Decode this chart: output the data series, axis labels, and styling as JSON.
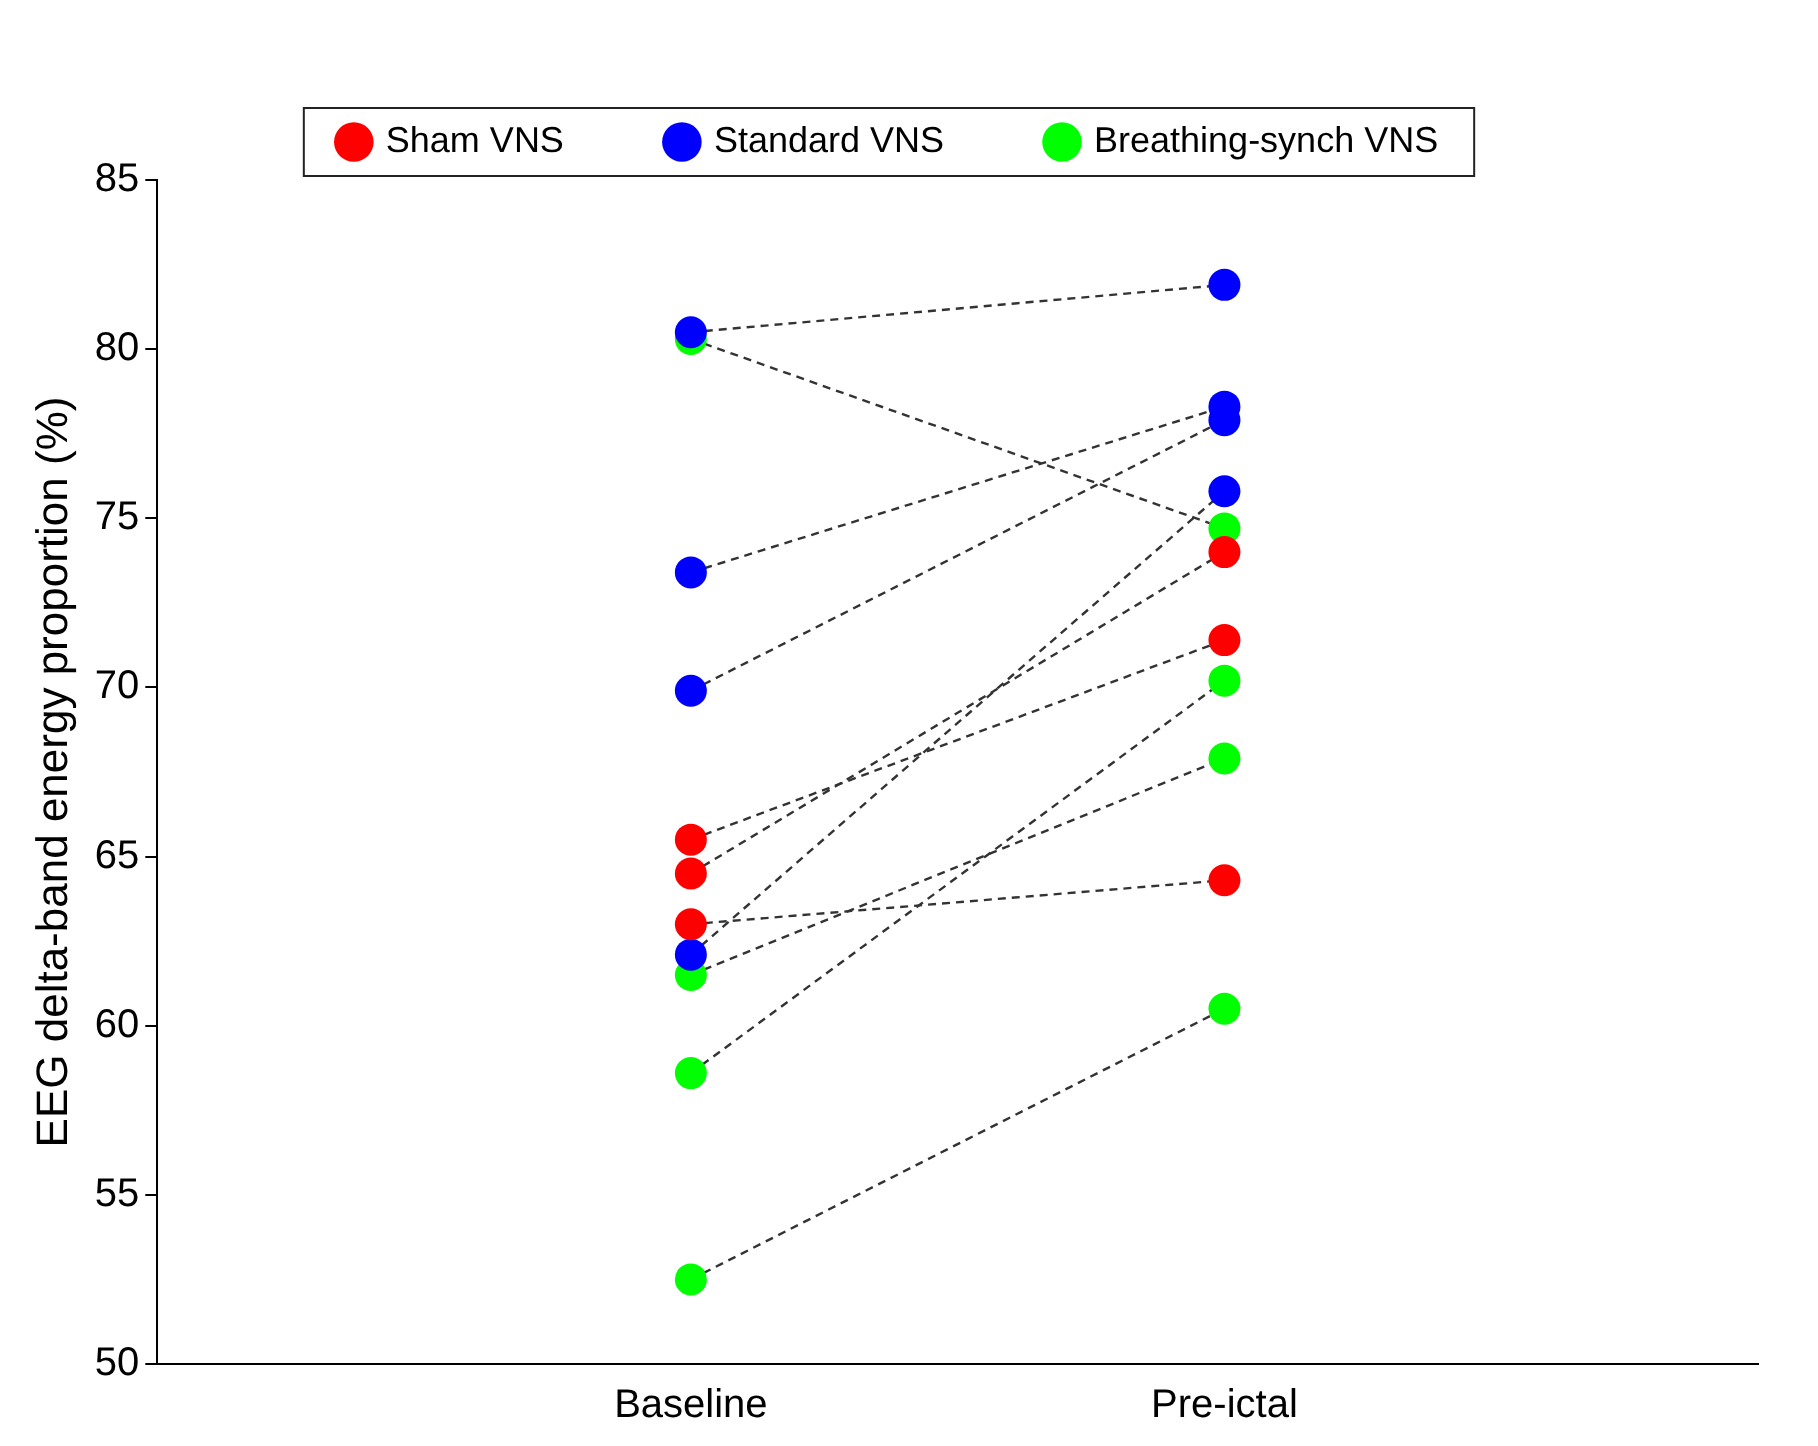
{
  "chart_data": {
    "type": "scatter",
    "ylabel": "EEG delta-band energy proportion (%)",
    "categories": [
      "Baseline",
      "Pre-ictal"
    ],
    "ylim": [
      50,
      85
    ],
    "yticks": [
      50,
      55,
      60,
      65,
      70,
      75,
      80,
      85
    ],
    "grid": false,
    "legend": "top",
    "marker": "circle",
    "series": [
      {
        "type": "line",
        "color": "#333333",
        "line_style": "dashed",
        "x": [
          "Baseline",
          "Pre-ictal"
        ],
        "marker": "none",
        "values": [
          80.5,
          81.9
        ]
      },
      {
        "type": "line",
        "color": "#333333",
        "line_style": "dashed",
        "x": [
          "Baseline",
          "Pre-ictal"
        ],
        "marker": "none",
        "values": [
          80.3,
          74.7
        ]
      },
      {
        "type": "line",
        "color": "#333333",
        "line_style": "dashed",
        "x": [
          "Baseline",
          "Pre-ictal"
        ],
        "marker": "none",
        "values": [
          73.4,
          78.3
        ]
      },
      {
        "type": "line",
        "color": "#333333",
        "line_style": "dashed",
        "x": [
          "Baseline",
          "Pre-ictal"
        ],
        "marker": "none",
        "values": [
          69.9,
          77.9
        ]
      },
      {
        "type": "line",
        "color": "#333333",
        "line_style": "dashed",
        "x": [
          "Baseline",
          "Pre-ictal"
        ],
        "marker": "none",
        "values": [
          65.5,
          71.4
        ]
      },
      {
        "type": "line",
        "color": "#333333",
        "line_style": "dashed",
        "x": [
          "Baseline",
          "Pre-ictal"
        ],
        "marker": "none",
        "values": [
          64.5,
          74.0
        ]
      },
      {
        "type": "line",
        "color": "#333333",
        "line_style": "dashed",
        "x": [
          "Baseline",
          "Pre-ictal"
        ],
        "marker": "none",
        "values": [
          63.0,
          64.3
        ]
      },
      {
        "type": "line",
        "color": "#333333",
        "line_style": "dashed",
        "x": [
          "Baseline",
          "Pre-ictal"
        ],
        "marker": "none",
        "values": [
          62.1,
          75.8
        ]
      },
      {
        "type": "line",
        "color": "#333333",
        "line_style": "dashed",
        "x": [
          "Baseline",
          "Pre-ictal"
        ],
        "marker": "none",
        "values": [
          61.5,
          67.9
        ]
      },
      {
        "type": "line",
        "color": "#333333",
        "line_style": "dashed",
        "x": [
          "Baseline",
          "Pre-ictal"
        ],
        "marker": "none",
        "values": [
          58.6,
          70.2
        ]
      },
      {
        "type": "line",
        "color": "#333333",
        "line_style": "dashed",
        "x": [
          "Baseline",
          "Pre-ictal"
        ],
        "marker": "none",
        "values": [
          52.5,
          60.5
        ]
      },
      {
        "name": "Sham VNS",
        "color": "#ff0000",
        "x": [
          "Baseline",
          "Baseline",
          "Baseline",
          "Pre-ictal",
          "Pre-ictal",
          "Pre-ictal"
        ],
        "values": [
          65.5,
          64.5,
          63.0,
          71.4,
          74.0,
          64.3
        ]
      },
      {
        "name": "Standard VNS",
        "color": "#0000ff",
        "x": [
          "Baseline",
          "Baseline",
          "Baseline",
          "Baseline",
          "Pre-ictal",
          "Pre-ictal",
          "Pre-ictal",
          "Pre-ictal"
        ],
        "values": [
          80.5,
          73.4,
          69.9,
          62.1,
          81.9,
          78.3,
          77.9,
          75.8
        ]
      },
      {
        "name": "Breathing-synch VNS",
        "color": "#00ff00",
        "x": [
          "Baseline",
          "Baseline",
          "Baseline",
          "Baseline",
          "Pre-ictal",
          "Pre-ictal",
          "Pre-ictal",
          "Pre-ictal"
        ],
        "values": [
          80.3,
          61.5,
          58.6,
          52.5,
          74.7,
          67.9,
          70.2,
          60.5
        ]
      }
    ]
  }
}
